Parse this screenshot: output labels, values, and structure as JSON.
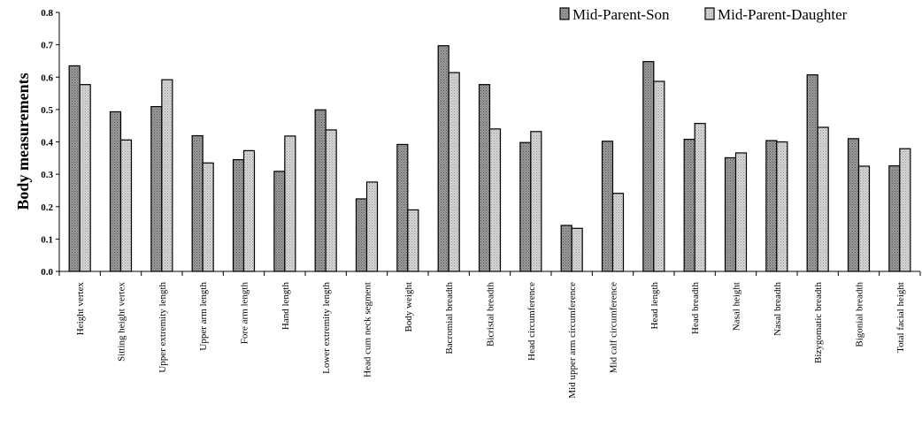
{
  "chart_data": {
    "type": "bar",
    "title": "",
    "xlabel": "",
    "ylabel": "Body measurements",
    "ylim": [
      0,
      0.8
    ],
    "yticks": [
      "0.0",
      "0.1",
      "0.2",
      "0.3",
      "0.4",
      "0.5",
      "0.6",
      "0.7",
      "0.8"
    ],
    "legend_position": "top-right",
    "grid": false,
    "categories": [
      "Height vertex",
      "Sitting height vertex",
      "Upper extremity length",
      "Upper arm length",
      "Fore arm length",
      "Hand length",
      "Lower extremity length",
      "Head cum neck segment",
      "Body weight",
      "Bacromial breadth",
      "Bicristal breadth",
      "Head circumference",
      "Mid upper arm circumference",
      "Mid calf circumference",
      "Head length",
      "Head breadth",
      "Nasal height",
      "Nasal breadth",
      "Bizygomatic breadth",
      "Bigonial breadth",
      "Total facial height"
    ],
    "series": [
      {
        "name": "Mid-Parent-Son",
        "color": "#8a8a8a",
        "values": [
          0.635,
          0.493,
          0.509,
          0.419,
          0.345,
          0.309,
          0.499,
          0.224,
          0.392,
          0.697,
          0.577,
          0.398,
          0.142,
          0.402,
          0.648,
          0.408,
          0.351,
          0.404,
          0.607,
          0.41,
          0.326
        ]
      },
      {
        "name": "Mid-Parent-Daughter",
        "color": "#c8c8c8",
        "values": [
          0.577,
          0.406,
          0.592,
          0.335,
          0.373,
          0.418,
          0.437,
          0.276,
          0.19,
          0.614,
          0.44,
          0.432,
          0.133,
          0.241,
          0.587,
          0.457,
          0.366,
          0.4,
          0.445,
          0.325,
          0.379
        ]
      }
    ]
  }
}
